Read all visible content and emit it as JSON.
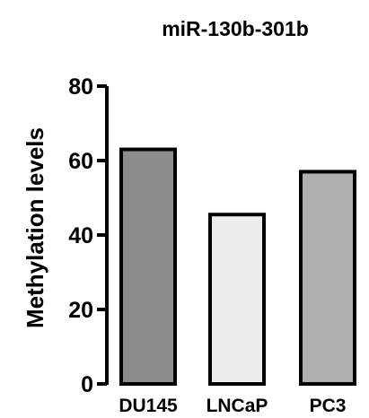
{
  "chart_data": {
    "type": "bar",
    "title": "miR-130b-301b",
    "xlabel": "",
    "ylabel": "Methylation levels",
    "categories": [
      "DU145",
      "LNCaP",
      "PC3"
    ],
    "values": [
      63,
      45.5,
      57
    ],
    "ylim": [
      0,
      80
    ],
    "yticks": [
      "0",
      "20",
      "40",
      "60",
      "80"
    ],
    "grid": false,
    "bar_colors": [
      "#8c8c8c",
      "#ececec",
      "#b0b0b0"
    ],
    "edge_color": "#000000"
  }
}
